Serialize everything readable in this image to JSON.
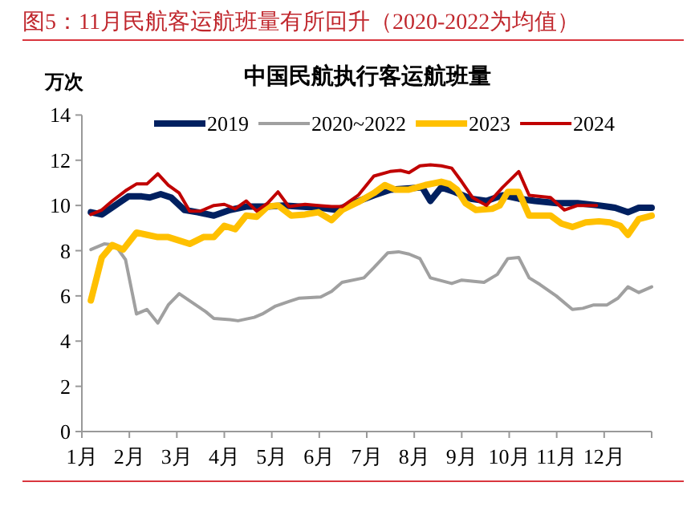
{
  "chart_data": {
    "type": "line",
    "title": "图5：11月民航客运航班量有所回升（2020-2022为均值）",
    "subtitle": "中国民航执行客运航班量",
    "ylabel": "万次",
    "xlim": [
      1,
      13
    ],
    "xticks": [
      {
        "value": 1,
        "label": "1月"
      },
      {
        "value": 2,
        "label": "2月"
      },
      {
        "value": 3,
        "label": "3月"
      },
      {
        "value": 4,
        "label": "4月"
      },
      {
        "value": 5,
        "label": "5月"
      },
      {
        "value": 6,
        "label": "6月"
      },
      {
        "value": 7,
        "label": "7月"
      },
      {
        "value": 8,
        "label": "8月"
      },
      {
        "value": 9,
        "label": "9月"
      },
      {
        "value": 10,
        "label": "10月"
      },
      {
        "value": 11,
        "label": "11月"
      },
      {
        "value": 12,
        "label": "12月"
      },
      {
        "value": 13,
        "label": null
      }
    ],
    "ylim": [
      0,
      14
    ],
    "yticks": [
      0,
      2,
      4,
      6,
      8,
      10,
      12,
      14
    ],
    "grid": false,
    "legend": "top",
    "marker": "none",
    "line_style": "solid",
    "series": [
      {
        "name": "2019",
        "color": "#002060",
        "x": [
          1.19,
          1.42,
          1.7,
          1.98,
          2.26,
          2.43,
          2.66,
          2.88,
          3.16,
          3.44,
          3.78,
          4.12,
          4.46,
          4.91,
          5.25,
          5.58,
          6.03,
          6.37,
          6.71,
          7.15,
          7.5,
          8.17,
          8.34,
          8.57,
          8.85,
          9.19,
          9.52,
          9.86,
          10.2,
          10.54,
          11.0,
          11.44,
          11.89,
          12.23,
          12.5,
          12.73,
          13.0
        ],
        "values": [
          9.7,
          9.6,
          10.0,
          10.4,
          10.4,
          10.35,
          10.5,
          10.35,
          9.8,
          9.7,
          9.55,
          9.8,
          9.95,
          9.95,
          10.0,
          9.95,
          9.9,
          9.8,
          10.1,
          10.45,
          10.7,
          10.8,
          10.2,
          10.8,
          10.6,
          10.3,
          10.2,
          10.45,
          10.3,
          10.2,
          10.1,
          10.1,
          10.0,
          9.9,
          9.7,
          9.9,
          9.9
        ]
      },
      {
        "name": "2020~2022",
        "color": "#a0a0a0",
        "x": [
          1.19,
          1.47,
          1.7,
          1.92,
          2.15,
          2.37,
          2.6,
          2.82,
          3.05,
          3.33,
          3.61,
          3.78,
          4.12,
          4.29,
          4.63,
          4.8,
          5.08,
          5.36,
          5.58,
          6.03,
          6.26,
          6.48,
          6.94,
          7.15,
          7.44,
          7.67,
          7.89,
          8.12,
          8.34,
          8.79,
          9.0,
          9.47,
          9.75,
          9.97,
          10.2,
          10.42,
          10.65,
          10.99,
          11.33,
          11.55,
          11.78,
          12.06,
          12.29,
          12.5,
          12.73,
          13.0
        ],
        "values": [
          8.05,
          8.3,
          8.25,
          7.6,
          5.2,
          5.4,
          4.8,
          5.6,
          6.1,
          5.7,
          5.3,
          5.0,
          4.95,
          4.9,
          5.05,
          5.2,
          5.55,
          5.75,
          5.9,
          5.95,
          6.2,
          6.6,
          6.8,
          7.25,
          7.9,
          7.95,
          7.85,
          7.65,
          6.8,
          6.55,
          6.7,
          6.6,
          6.95,
          7.65,
          7.7,
          6.8,
          6.5,
          6.0,
          5.4,
          5.45,
          5.6,
          5.6,
          5.9,
          6.4,
          6.15,
          6.4
        ]
      },
      {
        "name": "2023",
        "color": "#ffc000",
        "x": [
          1.19,
          1.42,
          1.64,
          1.87,
          2.15,
          2.37,
          2.6,
          2.82,
          3.05,
          3.27,
          3.56,
          3.78,
          4.0,
          4.23,
          4.46,
          4.68,
          4.91,
          5.13,
          5.41,
          5.7,
          5.98,
          6.26,
          6.48,
          6.82,
          7.15,
          7.38,
          7.6,
          7.89,
          8.23,
          8.57,
          8.74,
          8.9,
          9.08,
          9.3,
          9.64,
          9.8,
          9.97,
          10.2,
          10.42,
          10.65,
          10.87,
          11.1,
          11.33,
          11.61,
          11.89,
          12.12,
          12.34,
          12.5,
          12.73,
          13.0
        ],
        "values": [
          5.8,
          7.7,
          8.25,
          8.05,
          8.8,
          8.7,
          8.6,
          8.6,
          8.45,
          8.3,
          8.6,
          8.6,
          9.1,
          8.95,
          9.55,
          9.5,
          9.95,
          10.0,
          9.55,
          9.6,
          9.7,
          9.35,
          9.8,
          10.15,
          10.55,
          10.9,
          10.7,
          10.7,
          10.9,
          11.05,
          10.95,
          10.7,
          10.1,
          9.8,
          9.85,
          10.0,
          10.6,
          10.6,
          9.55,
          9.55,
          9.55,
          9.2,
          9.05,
          9.25,
          9.3,
          9.25,
          9.1,
          8.7,
          9.4,
          9.55
        ]
      },
      {
        "name": "2024",
        "color": "#c00000",
        "x": [
          1.19,
          1.42,
          1.64,
          1.92,
          2.15,
          2.37,
          2.6,
          2.82,
          3.05,
          3.27,
          3.5,
          3.78,
          4.0,
          4.23,
          4.46,
          4.68,
          4.91,
          5.13,
          5.36,
          5.7,
          5.98,
          6.26,
          6.48,
          6.82,
          7.15,
          7.49,
          7.71,
          7.89,
          8.12,
          8.34,
          8.57,
          8.79,
          9.0,
          9.23,
          9.52,
          9.86,
          10.2,
          10.42,
          10.87,
          11.16,
          11.44,
          11.84
        ],
        "values": [
          9.6,
          9.8,
          10.2,
          10.65,
          10.95,
          10.95,
          11.4,
          10.9,
          10.55,
          9.75,
          9.75,
          10.0,
          10.05,
          9.85,
          10.2,
          9.75,
          10.1,
          10.6,
          9.95,
          10.05,
          10.0,
          9.95,
          9.95,
          10.45,
          11.3,
          11.5,
          11.55,
          11.45,
          11.75,
          11.8,
          11.75,
          11.65,
          11.05,
          10.35,
          10.0,
          10.8,
          11.5,
          10.45,
          10.35,
          9.8,
          10.0,
          10.0
        ]
      }
    ]
  }
}
